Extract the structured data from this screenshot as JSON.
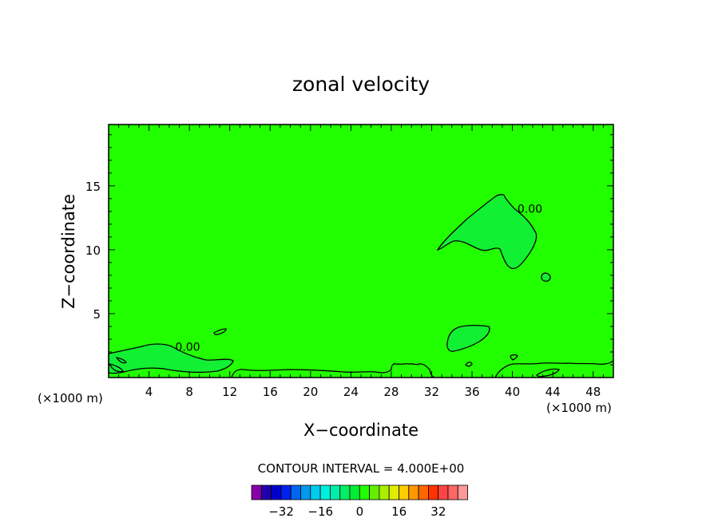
{
  "chart_data": {
    "type": "contour",
    "title": "zonal velocity",
    "xlabel": "X−coordinate",
    "ylabel": "Z−coordinate",
    "x_unit": "(×1000 m)",
    "xlim": [
      0,
      50
    ],
    "ylim": [
      0,
      19.8
    ],
    "x_ticks": [
      4,
      8,
      12,
      16,
      20,
      24,
      28,
      32,
      36,
      40,
      44,
      48
    ],
    "x_tick_labels": [
      "4",
      "8",
      "12",
      "16",
      "20",
      "24",
      "28",
      "32",
      "36",
      "40",
      "44",
      "48"
    ],
    "y_ticks": [
      5,
      10,
      15
    ],
    "y_tick_labels": [
      "5",
      "10",
      "15"
    ],
    "background_color": "#22ff00",
    "contour_interval_text": "CONTOUR INTERVAL = 4.000E+00",
    "contour_labels": [
      {
        "text": "0.00",
        "x": 40.5,
        "y": 12.9
      },
      {
        "text": "0.00",
        "x": 6.6,
        "y": 2.1
      }
    ],
    "colorbar": {
      "colors": [
        "#8800aa",
        "#2200aa",
        "#0000cc",
        "#0022ee",
        "#0066ee",
        "#0099ee",
        "#00ccee",
        "#00eedd",
        "#00eeaa",
        "#00ee66",
        "#00ee33",
        "#22ff00",
        "#66ee00",
        "#aaee00",
        "#ddee00",
        "#ffcc00",
        "#ff9900",
        "#ff6600",
        "#ff3300",
        "#ff4444",
        "#ff6666",
        "#ff9999"
      ],
      "tick_values": [
        "−32",
        "−16",
        "0",
        "16",
        "32"
      ]
    }
  }
}
